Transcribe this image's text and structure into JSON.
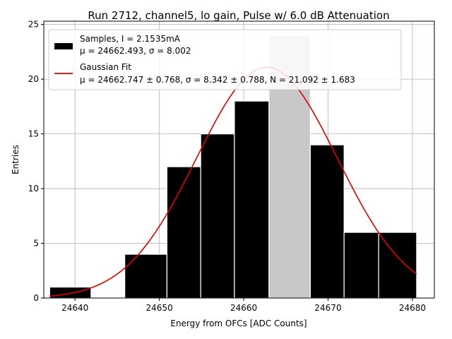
{
  "chart_data": {
    "type": "bar",
    "title": "Run 2712, channel5, lo gain, Pulse w/ 6.0 dB Attenuation",
    "xlabel": "Energy from OFCs [ADC Counts]",
    "ylabel": "Entries",
    "xlim": [
      24636.3,
      24682.6
    ],
    "ylim": [
      0,
      25.3
    ],
    "grid": true,
    "legend_position": "top-left",
    "x_ticks": [
      "24640",
      "24650",
      "24660",
      "24670",
      "24680"
    ],
    "y_ticks": [
      "0",
      "5",
      "10",
      "15",
      "20",
      "25"
    ],
    "bins": [
      {
        "lo": 24637.0,
        "hi": 24641.9,
        "count": 1
      },
      {
        "lo": 24641.9,
        "hi": 24645.9,
        "count": 0
      },
      {
        "lo": 24645.9,
        "hi": 24650.9,
        "count": 4
      },
      {
        "lo": 24650.9,
        "hi": 24654.9,
        "count": 12
      },
      {
        "lo": 24654.9,
        "hi": 24658.9,
        "count": 15
      },
      {
        "lo": 24658.9,
        "hi": 24663.0,
        "count": 18
      },
      {
        "lo": 24663.0,
        "hi": 24667.9,
        "count": 24
      },
      {
        "lo": 24667.9,
        "hi": 24671.9,
        "count": 14
      },
      {
        "lo": 24671.9,
        "hi": 24676.0,
        "count": 6
      },
      {
        "lo": 24676.0,
        "hi": 24680.5,
        "count": 6
      }
    ],
    "highlight_bin_index": 6,
    "fit": {
      "type": "gaussian",
      "mu": 24662.747,
      "sigma": 8.342,
      "N": 21.092,
      "x_range": [
        24637.0,
        24680.5
      ]
    },
    "legend": [
      {
        "kind": "bar",
        "line1": "Samples, I = 2.1535mA",
        "line2": "μ = 24662.493, σ = 8.002"
      },
      {
        "kind": "line",
        "line1": "Gaussian Fit",
        "line2": "μ = 24662.747 ± 0.768, σ = 8.342 ± 0.788, N = 21.092 ± 1.683"
      }
    ],
    "colors": {
      "bar_fill": "#000000",
      "bar_edge": "#ffffff",
      "highlight_fill": "#c8c8c8",
      "fit_line": "#e00000",
      "grid": "#b0b0b0"
    }
  }
}
